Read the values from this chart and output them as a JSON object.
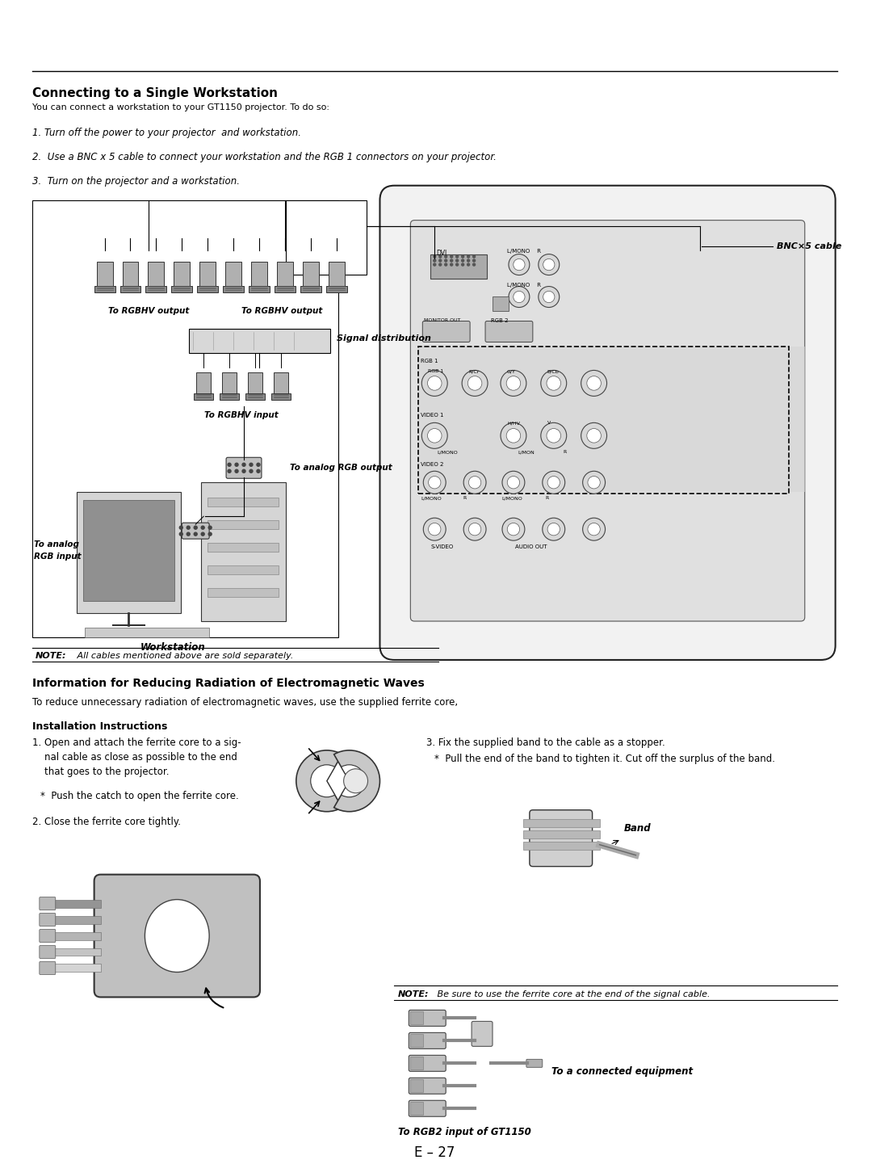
{
  "page_width": 10.8,
  "page_height": 14.41,
  "bg_color": "#ffffff",
  "title1": "Connecting to a Single Workstation",
  "subtitle1": "You can connect a workstation to your GT1150 projector. To do so:",
  "step1": "1. Turn off the power to your projector  and workstation.",
  "step2": "2.  Use a BNC x 5 cable to connect your workstation and the RGB 1 connectors on your projector.",
  "step3": "3.  Turn on the projector and a workstation.",
  "note1_bold": "NOTE:",
  "note1_rest": " All cables mentioned above are sold separately.",
  "title2": "Information for Reducing Radiation of Electromagnetic Waves",
  "subtitle2": "To reduce unnecessary radiation of electromagnetic waves, use the supplied ferrite core,",
  "install_title": "Installation Instructions",
  "note2_bold": "NOTE:",
  "note2_rest": " Be sure to use the ferrite core at the end of the signal cable.",
  "to_connected": "To a connected equipment",
  "to_rgb2": "To RGB2 input of GT1150",
  "page_num": "E – 27",
  "bnc_label": "BNC×5 cable",
  "to_rgbhv_out1": "To RGBHV output",
  "to_rgbhv_out2": "To RGBHV output",
  "signal_dist": "Signal distribution",
  "to_rgbhv_in": "To RGBHV input",
  "to_analog_out": "To analog RGB output",
  "to_analog_in_l1": "To analog",
  "to_analog_in_l2": "RGB input",
  "workstation": "Workstation",
  "band_label": "Band",
  "dvi_label": "DVI",
  "lmono_r": "L/MONO    R",
  "monitor_out": "MONITOR OUT",
  "rgb2_label": "RGB 2",
  "rgb1_label": "RGB 1",
  "rcr_label": "R/Cr",
  "gy_label": "G/Y",
  "bcb_label": "B/Cb",
  "video1_label": "VIDEO 1",
  "hhv_label": "H/HV",
  "v_label": "V",
  "video2_label": "VIDEO 2",
  "svideo_label": "S-VIDEO",
  "audio_out_label": "AUDIO OUT"
}
